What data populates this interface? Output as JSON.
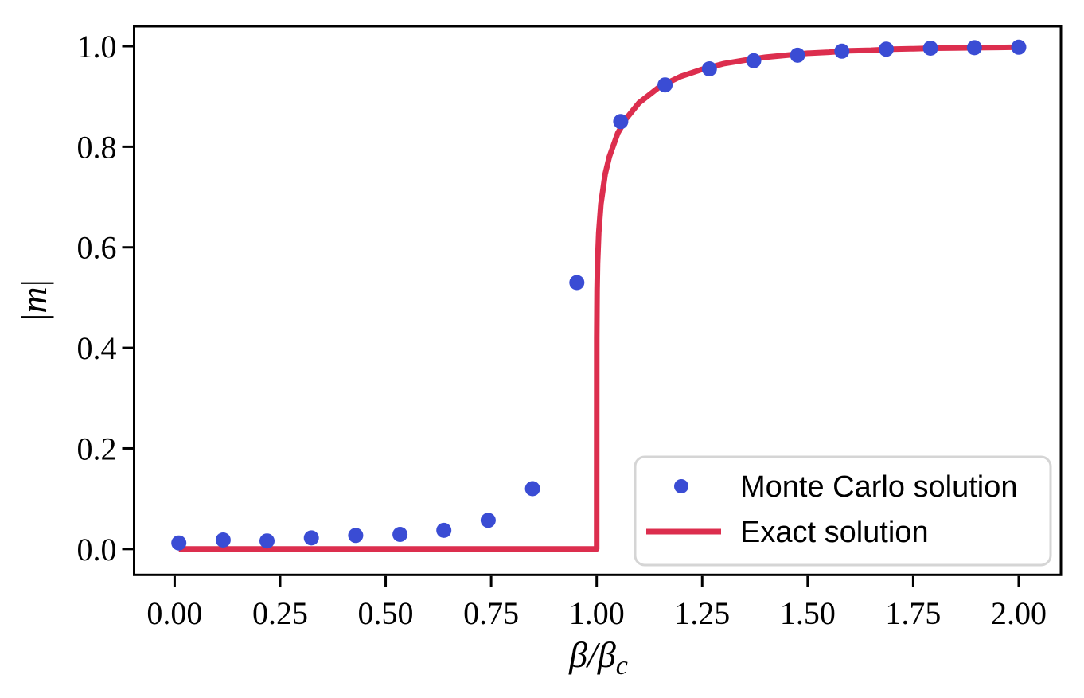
{
  "chart_data": {
    "type": "scatter+line",
    "title": "",
    "xlabel": "β/β_c",
    "xlabel_main": "β/β",
    "xlabel_sub": "c",
    "ylabel": "|m|",
    "ylabel_open_bar": "|",
    "ylabel_symbol": "m",
    "ylabel_close_bar": "|",
    "xlim": [
      -0.096,
      2.1
    ],
    "ylim": [
      -0.0514,
      1.0396
    ],
    "grid": false,
    "legend_position": "lower right",
    "xticks": [
      0.0,
      0.25,
      0.5,
      0.75,
      1.0,
      1.25,
      1.5,
      1.75,
      2.0
    ],
    "xtick_labels": [
      "0.00",
      "0.25",
      "0.50",
      "0.75",
      "1.00",
      "1.25",
      "1.50",
      "1.75",
      "2.00"
    ],
    "yticks": [
      0.0,
      0.2,
      0.4,
      0.6,
      0.8,
      1.0
    ],
    "ytick_labels": [
      "0.0",
      "0.2",
      "0.4",
      "0.6",
      "0.8",
      "1.0"
    ],
    "series": [
      {
        "name": "Monte Carlo solution",
        "type": "scatter",
        "color": "#3a4cd4",
        "marker": "circle",
        "x": [
          0.01,
          0.115,
          0.219,
          0.324,
          0.429,
          0.534,
          0.638,
          0.743,
          0.848,
          0.953,
          1.057,
          1.162,
          1.267,
          1.372,
          1.476,
          1.581,
          1.686,
          1.791,
          1.895,
          2.0
        ],
        "y": [
          0.012,
          0.018,
          0.016,
          0.022,
          0.027,
          0.029,
          0.037,
          0.057,
          0.12,
          0.53,
          0.85,
          0.923,
          0.955,
          0.971,
          0.982,
          0.99,
          0.994,
          0.996,
          0.997,
          0.998
        ]
      },
      {
        "name": "Exact solution",
        "type": "line",
        "color": "#dc2e4e",
        "points": [
          [
            0.01,
            0.0
          ],
          [
            1.0,
            0.0
          ],
          [
            1.0002,
            0.42
          ],
          [
            1.001,
            0.515
          ],
          [
            1.002,
            0.568
          ],
          [
            1.005,
            0.629
          ],
          [
            1.01,
            0.686
          ],
          [
            1.02,
            0.745
          ],
          [
            1.03,
            0.78
          ],
          [
            1.05,
            0.827
          ],
          [
            1.07,
            0.856
          ],
          [
            1.1,
            0.887
          ],
          [
            1.15,
            0.92
          ],
          [
            1.2,
            0.94
          ],
          [
            1.25,
            0.954
          ],
          [
            1.3,
            0.965
          ],
          [
            1.35,
            0.972
          ],
          [
            1.4,
            0.978
          ],
          [
            1.45,
            0.982
          ],
          [
            1.5,
            0.986
          ],
          [
            1.55,
            0.988
          ],
          [
            1.6,
            0.991
          ],
          [
            1.65,
            0.992
          ],
          [
            1.7,
            0.994
          ],
          [
            1.75,
            0.995
          ],
          [
            1.8,
            0.996
          ],
          [
            1.85,
            0.9965
          ],
          [
            1.9,
            0.997
          ],
          [
            1.95,
            0.9975
          ],
          [
            2.0,
            0.998
          ]
        ]
      }
    ]
  },
  "legend": {
    "mc_label": "Monte Carlo solution",
    "exact_label": "Exact solution"
  },
  "colors": {
    "mc_dot": "#3a4cd4",
    "exact_line": "#dc2e4e",
    "spine": "#000000",
    "legend_border": "#d5d5d5",
    "background": "#ffffff"
  }
}
